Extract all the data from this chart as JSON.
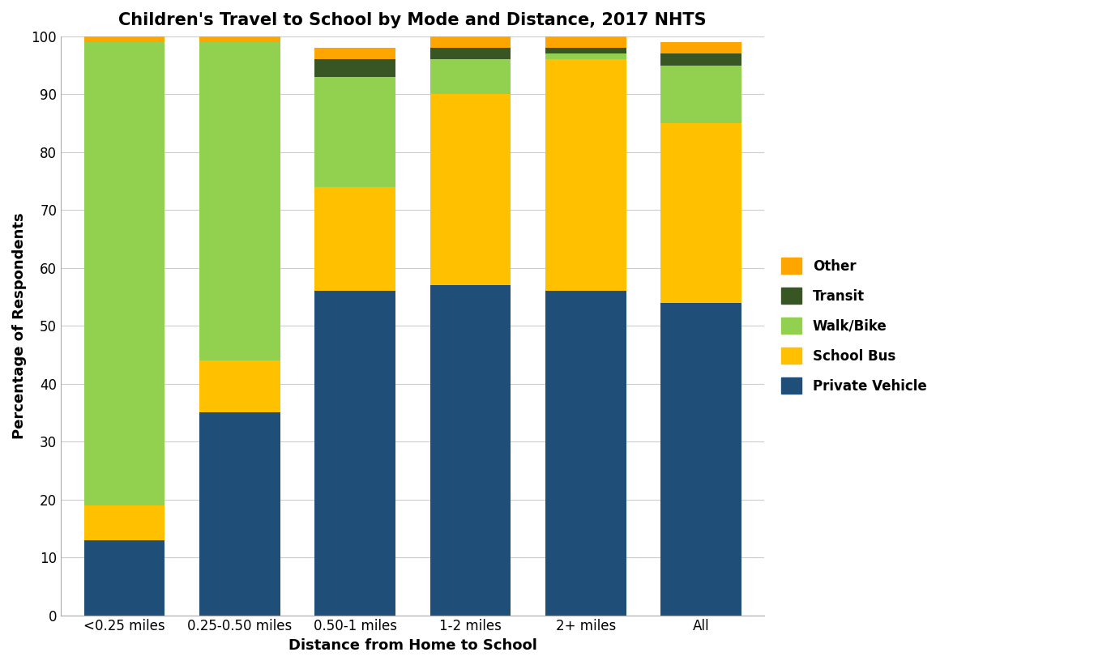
{
  "title": "Children's Travel to School by Mode and Distance, 2017 NHTS",
  "xlabel": "Distance from Home to School",
  "ylabel": "Percentage of Respondents",
  "categories": [
    "<0.25 miles",
    "0.25-0.50 miles",
    "0.50-1 miles",
    "1-2 miles",
    "2+ miles",
    "All"
  ],
  "modes": [
    "Private Vehicle",
    "School Bus",
    "Walk/Bike",
    "Transit",
    "Other"
  ],
  "colors": {
    "Private Vehicle": "#1f4e79",
    "School Bus": "#ffc000",
    "Walk/Bike": "#92d050",
    "Transit": "#375623",
    "Other": "#ffa500"
  },
  "data": {
    "Private Vehicle": [
      13,
      35,
      56,
      57,
      56,
      54
    ],
    "School Bus": [
      6,
      9,
      18,
      33,
      40,
      31
    ],
    "Walk/Bike": [
      80,
      55,
      19,
      6,
      1,
      10
    ],
    "Transit": [
      0,
      0,
      3,
      2,
      1,
      2
    ],
    "Other": [
      1,
      1,
      2,
      2,
      2,
      2
    ]
  },
  "ylim": [
    0,
    100
  ],
  "yticks": [
    0,
    10,
    20,
    30,
    40,
    50,
    60,
    70,
    80,
    90,
    100
  ],
  "legend_order": [
    "Other",
    "Transit",
    "Walk/Bike",
    "School Bus",
    "Private Vehicle"
  ],
  "bg_color": "#f5f5f5",
  "bar_width": 0.7,
  "fig_width": 13.5,
  "fig_height": 8.21,
  "title_fontsize": 15,
  "axis_label_fontsize": 13,
  "tick_fontsize": 12,
  "legend_fontsize": 12
}
